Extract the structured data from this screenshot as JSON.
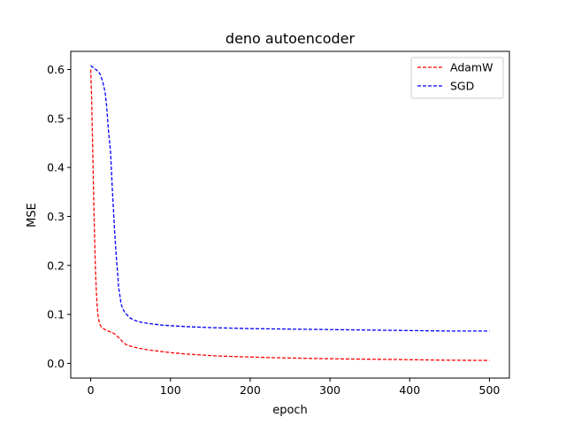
{
  "chart_data": {
    "type": "line",
    "title": "deno autoencoder",
    "xlabel": "epoch",
    "ylabel": "MSE",
    "xlim": [
      -25,
      525
    ],
    "ylim": [
      -0.03,
      0.637
    ],
    "xticks": [
      0,
      100,
      200,
      300,
      400,
      500
    ],
    "yticks": [
      0.0,
      0.1,
      0.2,
      0.3,
      0.4,
      0.5,
      0.6
    ],
    "xtick_labels": [
      "0",
      "100",
      "200",
      "300",
      "400",
      "500"
    ],
    "ytick_labels": [
      "0.0",
      "0.1",
      "0.2",
      "0.3",
      "0.4",
      "0.5",
      "0.6"
    ],
    "grid": false,
    "legend_position": "top-right",
    "series": [
      {
        "name": "AdamW",
        "color": "#ff0000",
        "line_style": "dashed",
        "x": [
          0,
          1,
          2,
          3,
          4,
          5,
          6,
          7,
          8,
          9,
          10,
          11,
          12,
          13,
          14,
          15,
          16,
          18,
          20,
          22,
          25,
          28,
          30,
          32,
          35,
          38,
          40,
          42,
          45,
          50,
          60,
          70,
          80,
          90,
          100,
          120,
          140,
          160,
          180,
          200,
          220,
          250,
          280,
          300,
          320,
          350,
          380,
          400,
          450,
          500
        ],
        "y": [
          0.6,
          0.55,
          0.48,
          0.4,
          0.32,
          0.25,
          0.19,
          0.15,
          0.12,
          0.1,
          0.09,
          0.082,
          0.078,
          0.075,
          0.073,
          0.072,
          0.071,
          0.069,
          0.067,
          0.066,
          0.064,
          0.062,
          0.06,
          0.057,
          0.053,
          0.048,
          0.044,
          0.041,
          0.038,
          0.035,
          0.031,
          0.028,
          0.026,
          0.024,
          0.022,
          0.019,
          0.017,
          0.015,
          0.014,
          0.013,
          0.012,
          0.011,
          0.01,
          0.0095,
          0.009,
          0.0085,
          0.008,
          0.0075,
          0.0065,
          0.006
        ]
      },
      {
        "name": "SGD",
        "color": "#0000ff",
        "line_style": "dashed",
        "x": [
          0,
          2,
          5,
          8,
          10,
          12,
          15,
          18,
          20,
          22,
          25,
          27,
          29,
          30,
          32,
          34,
          35,
          37,
          38,
          40,
          42,
          45,
          48,
          50,
          55,
          60,
          70,
          80,
          90,
          100,
          120,
          150,
          200,
          250,
          300,
          350,
          400,
          450,
          500
        ],
        "y": [
          0.608,
          0.605,
          0.602,
          0.598,
          0.595,
          0.59,
          0.575,
          0.555,
          0.525,
          0.48,
          0.43,
          0.36,
          0.3,
          0.27,
          0.22,
          0.18,
          0.155,
          0.135,
          0.122,
          0.113,
          0.106,
          0.1,
          0.095,
          0.092,
          0.088,
          0.085,
          0.082,
          0.08,
          0.078,
          0.077,
          0.075,
          0.073,
          0.071,
          0.07,
          0.069,
          0.068,
          0.067,
          0.066,
          0.066
        ]
      }
    ]
  }
}
